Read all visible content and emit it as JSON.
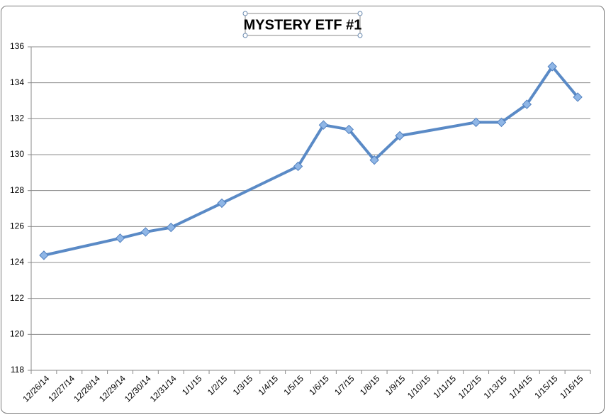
{
  "chart_data": {
    "type": "line",
    "title": "MYSTERY ETF #1",
    "categories": [
      "12/26/14",
      "12/27/14",
      "12/28/14",
      "12/29/14",
      "12/30/14",
      "12/31/14",
      "1/1/15",
      "1/2/15",
      "1/3/15",
      "1/4/15",
      "1/5/15",
      "1/6/15",
      "1/7/15",
      "1/8/15",
      "1/9/15",
      "1/10/15",
      "1/11/15",
      "1/12/15",
      "1/13/15",
      "1/14/15",
      "1/15/15",
      "1/16/15"
    ],
    "x": [
      "12/26/14",
      "12/29/14",
      "12/30/14",
      "12/31/14",
      "1/2/15",
      "1/5/15",
      "1/6/15",
      "1/7/15",
      "1/8/15",
      "1/9/15",
      "1/12/15",
      "1/13/15",
      "1/14/15",
      "1/15/15",
      "1/16/15"
    ],
    "values": [
      124.4,
      125.35,
      125.7,
      125.95,
      127.3,
      129.35,
      131.65,
      131.4,
      129.7,
      131.05,
      131.8,
      131.8,
      132.8,
      134.9,
      133.2
    ],
    "color": "#5a8ac6",
    "ylim": [
      118,
      136
    ],
    "yticks": [
      118,
      120,
      122,
      124,
      126,
      128,
      130,
      132,
      134,
      136
    ],
    "grid": true
  }
}
